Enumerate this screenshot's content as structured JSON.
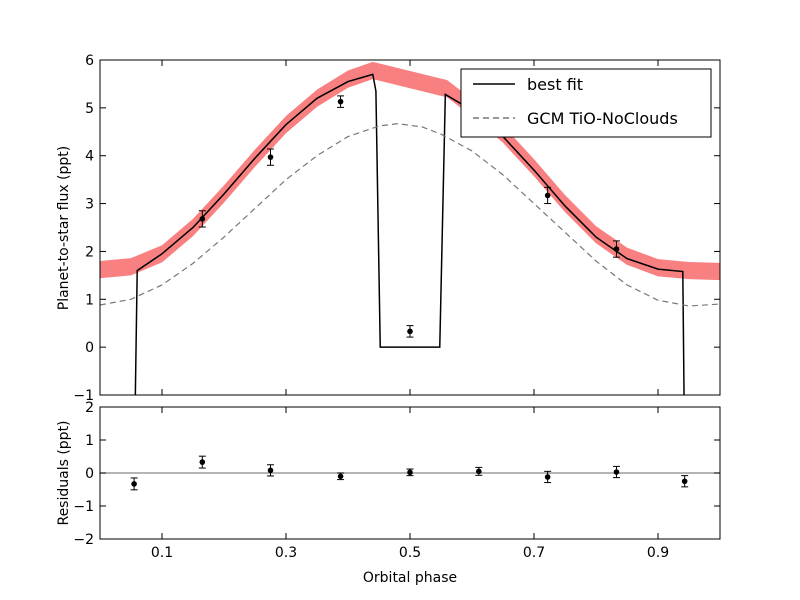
{
  "chart_data": [
    {
      "type": "line",
      "xlabel": "",
      "ylabel": "Planet-to-star flux (ppt)",
      "xlim": [
        0.0,
        1.0
      ],
      "ylim": [
        -1,
        6
      ],
      "yticks": [
        -1,
        0,
        1,
        2,
        3,
        4,
        5,
        6
      ],
      "xticks": [
        0.1,
        0.3,
        0.5,
        0.7,
        0.9
      ],
      "xtick_labels_shown": false,
      "grid": false,
      "legend": {
        "placement": "top-right",
        "entries": [
          {
            "name": "best fit",
            "style": "solid",
            "color": "#000000"
          },
          {
            "name": "GCM TiO-NoClouds",
            "style": "dashed",
            "color": "#777777"
          }
        ]
      },
      "band": {
        "color": "#f88080",
        "points": [
          [
            0.0,
            1.62
          ],
          [
            0.05,
            1.68
          ],
          [
            0.1,
            1.95
          ],
          [
            0.15,
            2.5
          ],
          [
            0.2,
            3.2
          ],
          [
            0.25,
            3.95
          ],
          [
            0.3,
            4.65
          ],
          [
            0.35,
            5.2
          ],
          [
            0.4,
            5.6
          ],
          [
            0.44,
            5.78
          ],
          [
            0.56,
            5.4
          ],
          [
            0.6,
            5.0
          ],
          [
            0.65,
            4.45
          ],
          [
            0.7,
            3.75
          ],
          [
            0.75,
            3.0
          ],
          [
            0.8,
            2.35
          ],
          [
            0.85,
            1.9
          ],
          [
            0.9,
            1.66
          ],
          [
            0.95,
            1.6
          ],
          [
            1.0,
            1.58
          ]
        ],
        "half_width": 0.18
      },
      "series": [
        {
          "name": "best fit",
          "points": [
            [
              0.057,
              -1.0
            ],
            [
              0.06,
              1.6
            ],
            [
              0.1,
              1.95
            ],
            [
              0.15,
              2.5
            ],
            [
              0.2,
              3.2
            ],
            [
              0.25,
              3.95
            ],
            [
              0.3,
              4.65
            ],
            [
              0.35,
              5.2
            ],
            [
              0.4,
              5.55
            ],
            [
              0.44,
              5.7
            ],
            [
              0.445,
              5.35
            ],
            [
              0.452,
              0.0
            ],
            [
              0.548,
              0.0
            ],
            [
              0.557,
              5.28
            ],
            [
              0.6,
              4.95
            ],
            [
              0.65,
              4.4
            ],
            [
              0.7,
              3.7
            ],
            [
              0.75,
              2.95
            ],
            [
              0.8,
              2.3
            ],
            [
              0.85,
              1.85
            ],
            [
              0.9,
              1.63
            ],
            [
              0.94,
              1.58
            ],
            [
              0.942,
              -1.0
            ]
          ]
        },
        {
          "name": "GCM TiO-NoClouds",
          "points": [
            [
              0.0,
              0.88
            ],
            [
              0.05,
              1.0
            ],
            [
              0.1,
              1.3
            ],
            [
              0.15,
              1.75
            ],
            [
              0.2,
              2.3
            ],
            [
              0.25,
              2.9
            ],
            [
              0.3,
              3.5
            ],
            [
              0.35,
              4.0
            ],
            [
              0.4,
              4.4
            ],
            [
              0.45,
              4.62
            ],
            [
              0.48,
              4.67
            ],
            [
              0.52,
              4.6
            ],
            [
              0.55,
              4.45
            ],
            [
              0.6,
              4.1
            ],
            [
              0.65,
              3.6
            ],
            [
              0.7,
              3.0
            ],
            [
              0.75,
              2.4
            ],
            [
              0.8,
              1.8
            ],
            [
              0.85,
              1.3
            ],
            [
              0.9,
              0.98
            ],
            [
              0.95,
              0.86
            ],
            [
              1.0,
              0.9
            ]
          ]
        },
        {
          "name": "",
          "type": "errorbar",
          "points": [
            {
              "x": 0.165,
              "y": 2.68,
              "err": 0.17
            },
            {
              "x": 0.275,
              "y": 3.97,
              "err": 0.17
            },
            {
              "x": 0.388,
              "y": 5.13,
              "err": 0.12
            },
            {
              "x": 0.5,
              "y": 0.33,
              "err": 0.12
            },
            {
              "x": 0.722,
              "y": 3.17,
              "err": 0.17
            },
            {
              "x": 0.833,
              "y": 2.05,
              "err": 0.17
            }
          ]
        }
      ]
    },
    {
      "type": "scatter",
      "xlabel": "Orbital phase",
      "ylabel": "Residuals (ppt)",
      "xlim": [
        0.0,
        1.0
      ],
      "ylim": [
        -2,
        2
      ],
      "yticks": [
        -2,
        -1,
        0,
        1,
        2
      ],
      "xticks": [
        0.1,
        0.3,
        0.5,
        0.7,
        0.9
      ],
      "xtick_labels": [
        "0.1",
        "0.3",
        "0.5",
        "0.7",
        "0.9"
      ],
      "grid": false,
      "reference_line": {
        "y": 0,
        "color": "#888888"
      },
      "series": [
        {
          "name": "",
          "type": "errorbar",
          "points": [
            {
              "x": 0.055,
              "y": -0.33,
              "err": 0.18
            },
            {
              "x": 0.165,
              "y": 0.33,
              "err": 0.18
            },
            {
              "x": 0.275,
              "y": 0.08,
              "err": 0.17
            },
            {
              "x": 0.388,
              "y": -0.1,
              "err": 0.1
            },
            {
              "x": 0.5,
              "y": 0.02,
              "err": 0.1
            },
            {
              "x": 0.611,
              "y": 0.05,
              "err": 0.12
            },
            {
              "x": 0.722,
              "y": -0.12,
              "err": 0.17
            },
            {
              "x": 0.833,
              "y": 0.03,
              "err": 0.17
            },
            {
              "x": 0.943,
              "y": -0.25,
              "err": 0.17
            }
          ]
        }
      ]
    }
  ]
}
